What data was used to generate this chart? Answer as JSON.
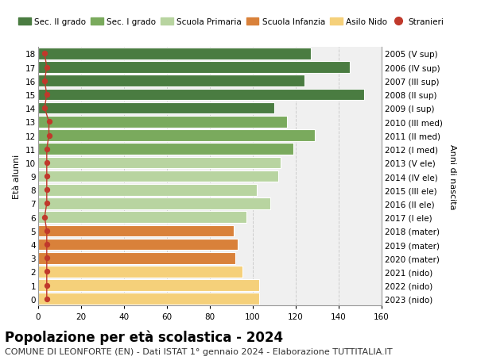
{
  "ages": [
    18,
    17,
    16,
    15,
    14,
    13,
    12,
    11,
    10,
    9,
    8,
    7,
    6,
    5,
    4,
    3,
    2,
    1,
    0
  ],
  "years": [
    "2005 (V sup)",
    "2006 (IV sup)",
    "2007 (III sup)",
    "2008 (II sup)",
    "2009 (I sup)",
    "2010 (III med)",
    "2011 (II med)",
    "2012 (I med)",
    "2013 (V ele)",
    "2014 (IV ele)",
    "2015 (III ele)",
    "2016 (II ele)",
    "2017 (I ele)",
    "2018 (mater)",
    "2019 (mater)",
    "2020 (mater)",
    "2021 (nido)",
    "2022 (nido)",
    "2023 (nido)"
  ],
  "values": [
    127,
    145,
    124,
    152,
    110,
    116,
    129,
    119,
    113,
    112,
    102,
    108,
    97,
    91,
    93,
    92,
    95,
    103,
    103
  ],
  "stranieri": [
    3,
    4,
    3,
    4,
    3,
    5,
    5,
    4,
    4,
    4,
    4,
    4,
    3,
    4,
    4,
    4,
    4,
    4,
    4
  ],
  "bar_colors": [
    "#4a7c41",
    "#4a7c41",
    "#4a7c41",
    "#4a7c41",
    "#4a7c41",
    "#7aaa5d",
    "#7aaa5d",
    "#7aaa5d",
    "#b8d4a0",
    "#b8d4a0",
    "#b8d4a0",
    "#b8d4a0",
    "#b8d4a0",
    "#d9813a",
    "#d9813a",
    "#d9813a",
    "#f5d07a",
    "#f5d07a",
    "#f5d07a"
  ],
  "legend_labels": [
    "Sec. II grado",
    "Sec. I grado",
    "Scuola Primaria",
    "Scuola Infanzia",
    "Asilo Nido",
    "Stranieri"
  ],
  "legend_colors": [
    "#4a7c41",
    "#7aaa5d",
    "#b8d4a0",
    "#d9813a",
    "#f5d07a",
    "#c0392b"
  ],
  "stranieri_color": "#c0392b",
  "title": "Popolazione per età scolastica - 2024",
  "subtitle": "COMUNE DI LEONFORTE (EN) - Dati ISTAT 1° gennaio 2024 - Elaborazione TUTTITALIA.IT",
  "ylabel": "Età alunni",
  "right_ylabel": "Anni di nascita",
  "xlim": [
    0,
    160
  ],
  "xticks": [
    0,
    20,
    40,
    60,
    80,
    100,
    120,
    140,
    160
  ],
  "background_color": "#ffffff",
  "plot_bg_color": "#f0f0f0",
  "grid_color": "#cccccc",
  "bar_height": 0.85,
  "title_fontsize": 12,
  "subtitle_fontsize": 8,
  "tick_fontsize": 7.5,
  "ylabel_fontsize": 8,
  "legend_fontsize": 7.5
}
